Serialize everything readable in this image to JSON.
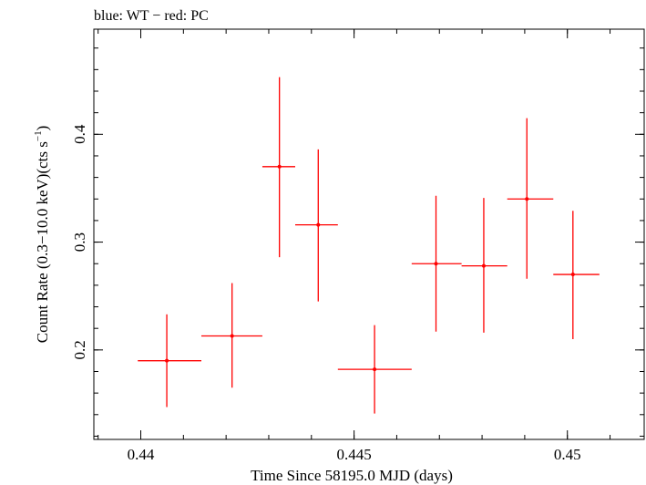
{
  "chart_data": {
    "type": "scatter",
    "title": "blue: WT − red: PC",
    "xlabel": "Time Since 58195.0 MJD (days)",
    "ylabel_main": "Count Rate (0.3−10.0 keV)(cts s",
    "ylabel_sup": "−1",
    "ylabel_end": ")",
    "xlim": [
      0.4389,
      0.4518
    ],
    "ylim": [
      0.117,
      0.4975
    ],
    "grid": false,
    "x_ticks": [
      {
        "value": 0.44,
        "label": "0.44"
      },
      {
        "value": 0.445,
        "label": "0.445"
      },
      {
        "value": 0.45,
        "label": "0.45"
      }
    ],
    "y_ticks": [
      {
        "value": 0.2,
        "label": "0.2"
      },
      {
        "value": 0.3,
        "label": "0.3"
      },
      {
        "value": 0.4,
        "label": "0.4"
      }
    ],
    "x_minor_step": 0.001,
    "y_minor_step": 0.02,
    "series": [
      {
        "color": "#ff0000",
        "points": [
          {
            "x": 0.44061,
            "xlo": 0.43993,
            "xhi": 0.44142,
            "y": 0.19,
            "ylo": 0.147,
            "yhi": 0.233
          },
          {
            "x": 0.44214,
            "xlo": 0.44142,
            "xhi": 0.44285,
            "y": 0.213,
            "ylo": 0.165,
            "yhi": 0.262
          },
          {
            "x": 0.44325,
            "xlo": 0.44285,
            "xhi": 0.44362,
            "y": 0.37,
            "ylo": 0.286,
            "yhi": 0.453
          },
          {
            "x": 0.44416,
            "xlo": 0.44362,
            "xhi": 0.44462,
            "y": 0.316,
            "ylo": 0.245,
            "yhi": 0.386
          },
          {
            "x": 0.44548,
            "xlo": 0.44462,
            "xhi": 0.44635,
            "y": 0.182,
            "ylo": 0.141,
            "yhi": 0.223
          },
          {
            "x": 0.44692,
            "xlo": 0.44635,
            "xhi": 0.44752,
            "y": 0.28,
            "ylo": 0.217,
            "yhi": 0.343
          },
          {
            "x": 0.44804,
            "xlo": 0.44752,
            "xhi": 0.44859,
            "y": 0.278,
            "ylo": 0.216,
            "yhi": 0.341
          },
          {
            "x": 0.44905,
            "xlo": 0.44859,
            "xhi": 0.44967,
            "y": 0.34,
            "ylo": 0.266,
            "yhi": 0.415
          },
          {
            "x": 0.45013,
            "xlo": 0.44967,
            "xhi": 0.45075,
            "y": 0.27,
            "ylo": 0.21,
            "yhi": 0.329
          }
        ]
      }
    ]
  }
}
